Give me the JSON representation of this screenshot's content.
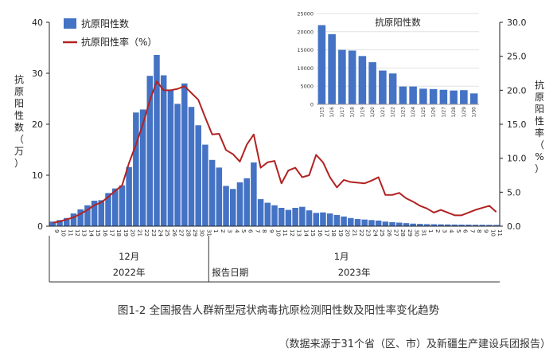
{
  "caption": "图1-2 全国报告人群新型冠状病毒抗原检测阳性数及阳性率变化趋势",
  "source_note": "（数据来源于31个省（区、市）及新疆生产建设兵团报告）",
  "chart_data": [
    {
      "type": "bar+line",
      "title": "",
      "xlabel": "报告日期",
      "ylabel_left": "抗原阳性数（万）",
      "ylabel_right": "抗原阳性率（%）",
      "ylim_left": [
        0,
        40
      ],
      "ylim_right": [
        0,
        30
      ],
      "yticks_left": [
        "0",
        "10",
        "20",
        "30",
        "40"
      ],
      "yticks_right": [
        "0.0",
        "5.0",
        "10.0",
        "15.0",
        "20.0",
        "25.0",
        "30.0"
      ],
      "month_labels": [
        "12月",
        "1月"
      ],
      "year_labels": [
        "2022年",
        "2023年"
      ],
      "categories": [
        "12/9",
        "12/10",
        "12/11",
        "12/12",
        "12/13",
        "12/14",
        "12/15",
        "12/16",
        "12/17",
        "12/18",
        "12/19",
        "12/20",
        "12/21",
        "12/22",
        "12/23",
        "12/24",
        "12/25",
        "12/26",
        "12/27",
        "12/28",
        "12/29",
        "12/30",
        "12/31",
        "1/1",
        "1/2",
        "1/3",
        "1/4",
        "1/5",
        "1/6",
        "1/7",
        "1/8",
        "1/9",
        "1/10",
        "1/11",
        "1/12",
        "1/13",
        "1/14",
        "1/15",
        "1/16",
        "1/17",
        "1/18",
        "1/19",
        "1/20",
        "1/21",
        "1/22",
        "1/23",
        "1/24",
        "1/25",
        "1/26",
        "1/27",
        "1/28",
        "1/29",
        "1/30",
        "1/31",
        "2/1",
        "2/2",
        "2/3",
        "2/4",
        "2/5",
        "2/6",
        "2/7",
        "2/8",
        "2/9",
        "2/10",
        "2/11"
      ],
      "tick_labels": [
        "9",
        "10",
        "11",
        "12",
        "13",
        "14",
        "15",
        "16",
        "17",
        "18",
        "19",
        "20",
        "21",
        "22",
        "23",
        "24",
        "25",
        "26",
        "27",
        "28",
        "29",
        "30",
        "31",
        "1",
        "2",
        "3",
        "4",
        "5",
        "6",
        "7",
        "8",
        "9",
        "10",
        "11",
        "12",
        "13",
        "14",
        "15",
        "16",
        "17",
        "18",
        "19",
        "20",
        "21",
        "22",
        "23",
        "24",
        "25",
        "26",
        "27",
        "28",
        "29",
        "30",
        "31",
        "1",
        "2",
        "3",
        "4",
        "5",
        "6",
        "7",
        "8",
        "9",
        "10",
        "11"
      ],
      "legend": [
        {
          "name": "抗原阳性数",
          "kind": "bar",
          "color": "#4472C4"
        },
        {
          "name": "抗原阳性率（%）",
          "kind": "line",
          "color": "#B22222"
        }
      ],
      "series": [
        {
          "name": "抗原阳性数",
          "axis": "left",
          "unit": "万",
          "values": [
            0.9,
            1.2,
            1.6,
            2.5,
            3.3,
            4.1,
            5.0,
            5.1,
            6.5,
            7.4,
            8.0,
            11.6,
            22.3,
            22.9,
            29.5,
            33.6,
            29.6,
            26.7,
            24.0,
            28.0,
            23.4,
            19.8,
            16.0,
            13.0,
            11.5,
            7.9,
            7.3,
            8.6,
            9.4,
            12.5,
            5.3,
            4.6,
            4.1,
            3.6,
            3.2,
            3.6,
            3.8,
            3.1,
            2.6,
            2.7,
            2.5,
            2.2,
            1.9,
            1.6,
            1.4,
            1.3,
            1.2,
            1.1,
            0.9,
            0.8,
            0.7,
            0.6,
            0.5,
            0.45,
            0.4,
            0.38,
            0.36,
            0.34,
            0.32,
            0.3,
            0.3,
            0.28,
            0.27,
            0.26,
            0.25
          ]
        },
        {
          "name": "抗原阳性率（%）",
          "axis": "right",
          "unit": "%",
          "values": [
            0.5,
            0.7,
            1.0,
            1.3,
            1.8,
            2.4,
            3.1,
            3.5,
            4.3,
            5.2,
            6.0,
            9.3,
            12.0,
            15.0,
            18.5,
            21.3,
            20.0,
            20.0,
            20.2,
            20.6,
            19.6,
            18.6,
            16.0,
            13.5,
            13.6,
            11.2,
            10.6,
            9.5,
            12.0,
            13.5,
            8.6,
            9.4,
            9.6,
            6.3,
            8.2,
            8.6,
            7.2,
            7.5,
            10.5,
            9.4,
            7.2,
            5.7,
            6.8,
            6.5,
            6.4,
            6.3,
            6.7,
            7.2,
            4.6,
            4.6,
            4.9,
            4.1,
            3.6,
            3.0,
            2.6,
            2.0,
            2.4,
            2.0,
            1.6,
            1.6,
            2.0,
            2.4,
            2.7,
            3.0,
            2.1
          ]
        }
      ]
    },
    {
      "type": "bar",
      "title": "抗原阳性数",
      "ylim": [
        0,
        25000
      ],
      "yticks": [
        "0",
        "5000",
        "10000",
        "15000",
        "20000",
        "25000"
      ],
      "categories": [
        "1/15",
        "1/16",
        "1/17",
        "1/18",
        "1/19",
        "1/20",
        "1/21",
        "1/22",
        "1/23",
        "1/24",
        "1/25",
        "1/26",
        "1/27",
        "1/28",
        "1/29",
        "1/30"
      ],
      "color": "#4472C4",
      "values": [
        21800,
        19300,
        15000,
        14800,
        13300,
        11600,
        9300,
        8500,
        4900,
        4900,
        4300,
        4200,
        4000,
        3800,
        3900,
        3000
      ]
    }
  ]
}
